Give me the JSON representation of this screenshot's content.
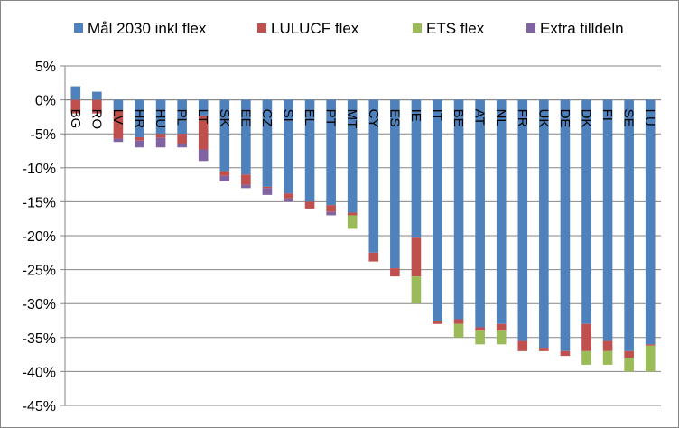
{
  "chart_data": {
    "type": "bar",
    "stacked": true,
    "categories": [
      "BG",
      "RO",
      "LV",
      "HR",
      "HU",
      "PL",
      "LT",
      "SK",
      "EE",
      "CZ",
      "SI",
      "EL",
      "PT",
      "MT",
      "CY",
      "ES",
      "IE",
      "IT",
      "BE",
      "AT",
      "NL",
      "FR",
      "UK",
      "DE",
      "DK",
      "FI",
      "SE",
      "LU"
    ],
    "series": [
      {
        "name": "Mål 2030 inkl flex",
        "color": "#4F81BD",
        "values": [
          2,
          1.2,
          -1.5,
          -5.5,
          -5,
          -5,
          -2.3,
          -10.5,
          -11,
          -12.8,
          -13.8,
          -15,
          -15.5,
          -16.6,
          -22.5,
          -24.8,
          -20.3,
          -32.5,
          -32.3,
          -33.5,
          -33,
          -35.5,
          -36.5,
          -37,
          -33,
          -35.5,
          -37,
          -36
        ]
      },
      {
        "name": "LULUCF flex",
        "color": "#C0504D",
        "values": [
          -2,
          -2,
          -4.2,
          -0.5,
          -0.6,
          -1.5,
          -5,
          -0.7,
          -1.5,
          -0.2,
          -0.7,
          -1,
          -1,
          -0.4,
          -1.3,
          -1.2,
          -5.7,
          -0.5,
          -0.7,
          -0.5,
          -1,
          -1.5,
          -0.5,
          -0.7,
          -4,
          -1.5,
          -1,
          -0.2
        ]
      },
      {
        "name": "ETS flex",
        "color": "#9BBB59",
        "values": [
          0,
          0,
          0,
          0,
          0,
          0,
          0,
          0,
          0,
          0,
          0,
          0,
          0,
          -2,
          0,
          0,
          -4,
          0,
          -2,
          -2,
          -2,
          0,
          0,
          0,
          -2,
          -2,
          -2,
          -3.8
        ]
      },
      {
        "name": "Extra tilldeln",
        "color": "#8064A2",
        "values": [
          0,
          0,
          -0.5,
          -1,
          -1.4,
          -0.5,
          -1.7,
          -0.8,
          -0.5,
          -1,
          -0.5,
          0,
          -0.5,
          0,
          0,
          0,
          0,
          0,
          0,
          0,
          0,
          0,
          0,
          0,
          0,
          0,
          0,
          0
        ]
      }
    ],
    "yticks": [
      "5%",
      "0%",
      "-5%",
      "-10%",
      "-15%",
      "-20%",
      "-25%",
      "-30%",
      "-35%",
      "-40%",
      "-45%"
    ],
    "ylim": [
      -45,
      5
    ],
    "ystep": 5,
    "grid": true,
    "legend_position": "top",
    "title": "",
    "xlabel": "",
    "ylabel": ""
  }
}
